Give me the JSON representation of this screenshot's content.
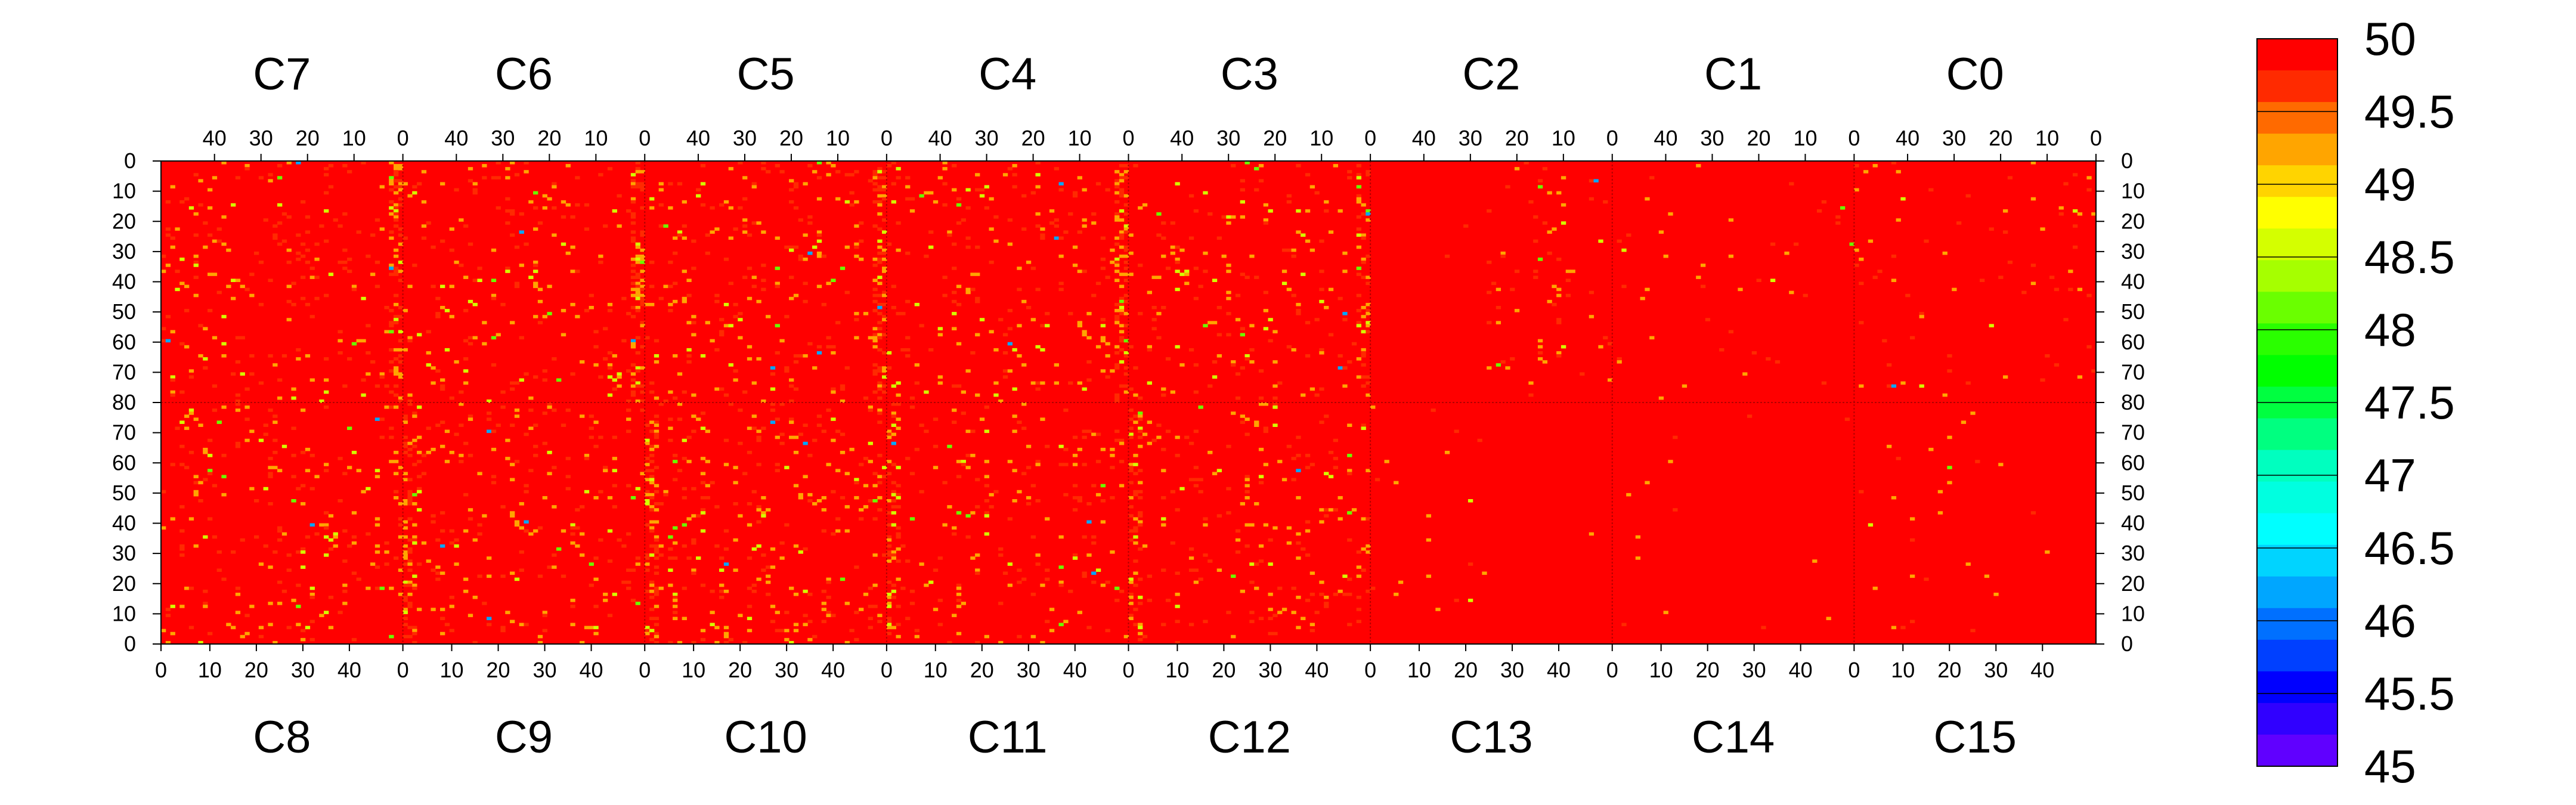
{
  "chart_data": {
    "type": "heatmap",
    "colorbar": {
      "min": 45,
      "max": 50,
      "step": 0.25,
      "tick_labels": [
        "50",
        "49.5",
        "49",
        "48.5",
        "48",
        "47.5",
        "47",
        "46.5",
        "46",
        "45.5",
        "45"
      ],
      "colors": [
        "#ff0000",
        "#ff2a00",
        "#ff6a00",
        "#ffa500",
        "#ffd400",
        "#ffff00",
        "#d4ff00",
        "#a6ff00",
        "#6aff00",
        "#2aff00",
        "#00ff00",
        "#00ff40",
        "#00ff80",
        "#00ffbf",
        "#00ffe0",
        "#00ffff",
        "#00d4ff",
        "#00a6ff",
        "#0070ff",
        "#0040ff",
        "#0000ff",
        "#3000ff",
        "#6000ff"
      ]
    },
    "top_chips": [
      "C7",
      "C6",
      "C5",
      "C4",
      "C3",
      "C2",
      "C1",
      "C0"
    ],
    "bottom_chips": [
      "C8",
      "C9",
      "C10",
      "C11",
      "C12",
      "C13",
      "C14",
      "C15"
    ],
    "top_x_tick_labels": [
      "40",
      "30",
      "20",
      "10",
      "0"
    ],
    "bottom_x_tick_labels": [
      "0",
      "10",
      "20",
      "30",
      "40"
    ],
    "top_y_tick_labels": [
      "0",
      "10",
      "20",
      "30",
      "40",
      "50",
      "60",
      "70",
      "80"
    ],
    "bottom_y_tick_labels": [
      "70",
      "60",
      "50",
      "40",
      "30",
      "20",
      "10",
      "0"
    ],
    "columns_per_chip": 52,
    "rows_per_half": 80,
    "dominant_value": 50,
    "column_pattern": "bad pixels (values 49-49.7) concentrated near column 0 of chips C3, C4, C5, C6, C7 and C9-C12; chips C13, C14, C15, C0, C1 mostly uniform at 50"
  }
}
